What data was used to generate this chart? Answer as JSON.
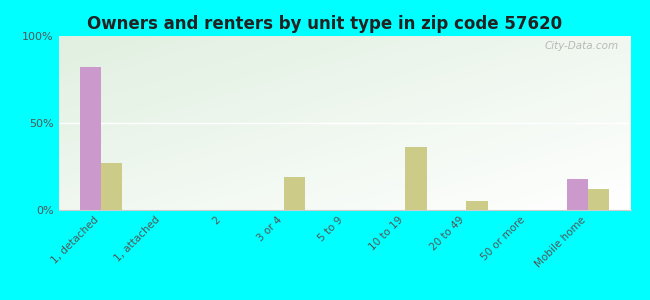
{
  "title": "Owners and renters by unit type in zip code 57620",
  "categories": [
    "1, detached",
    "1, attached",
    "2",
    "3 or 4",
    "5 to 9",
    "10 to 19",
    "20 to 49",
    "50 or more",
    "Mobile home"
  ],
  "owner_values": [
    82,
    0,
    0,
    0,
    0,
    0,
    0,
    0,
    18
  ],
  "renter_values": [
    27,
    0,
    0,
    19,
    0,
    36,
    5,
    0,
    12
  ],
  "owner_color": "#cc99cc",
  "renter_color": "#cccc88",
  "bg_color": "#00ffff",
  "ylim": [
    0,
    100
  ],
  "yticks": [
    0,
    50,
    100
  ],
  "ytick_labels": [
    "0%",
    "50%",
    "100%"
  ],
  "bar_width": 0.35,
  "watermark": "City-Data.com"
}
